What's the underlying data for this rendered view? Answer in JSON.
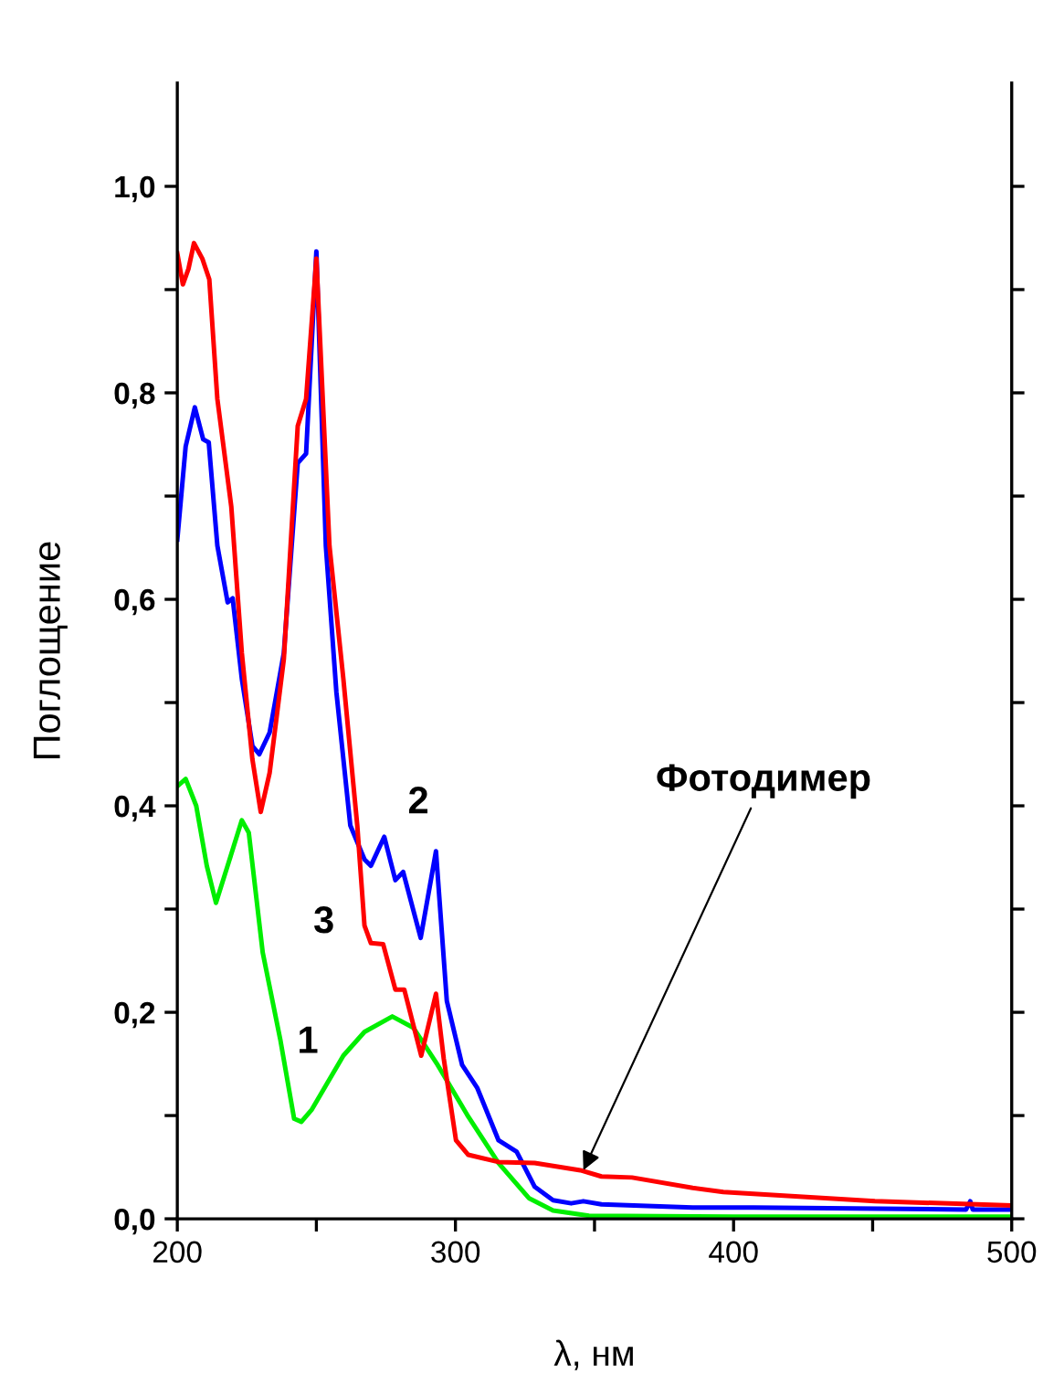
{
  "chart_data": {
    "type": "line",
    "xlabel": "λ, нм",
    "ylabel": "Поглощение",
    "xlim": [
      200,
      500
    ],
    "ylim": [
      0,
      1.1
    ],
    "xticks": [
      200,
      {
        "value": 250,
        "label": null
      },
      300,
      {
        "value": 350,
        "label": null
      },
      400,
      {
        "value": 450,
        "label": null
      },
      500
    ],
    "yticks": [
      {
        "value": 0,
        "label": "0,0"
      },
      {
        "value": 0.1,
        "label": null
      },
      {
        "value": 0.2,
        "label": "0,2"
      },
      {
        "value": 0.3,
        "label": null
      },
      {
        "value": 0.4,
        "label": "0,4"
      },
      {
        "value": 0.5,
        "label": null
      },
      {
        "value": 0.6,
        "label": "0,6"
      },
      {
        "value": 0.7,
        "label": null
      },
      {
        "value": 0.8,
        "label": "0,8"
      },
      {
        "value": 0.9,
        "label": null
      },
      {
        "value": 1.0,
        "label": "1,0"
      }
    ],
    "grid": false,
    "legend": false,
    "marker": "none",
    "line_style": "solid",
    "series": [
      {
        "name": "1",
        "color": "#00ee00",
        "x": [
          200,
          203,
          206.8,
          210.6,
          213.9,
          218.1,
          223.2,
          225.7,
          230.7,
          237,
          242,
          244.6,
          248.4,
          253.4,
          259.7,
          267.3,
          277.3,
          284.9,
          293.6,
          304.6,
          315.5,
          326.4,
          335.1,
          348,
          400,
          500
        ],
        "values": [
          0.419,
          0.426,
          0.4,
          0.342,
          0.306,
          0.342,
          0.386,
          0.374,
          0.258,
          0.174,
          0.097,
          0.094,
          0.106,
          0.129,
          0.158,
          0.181,
          0.196,
          0.185,
          0.149,
          0.099,
          0.054,
          0.02,
          0.008,
          0.003,
          0.002,
          0.002
        ]
      },
      {
        "name": "2",
        "color": "#0000ff",
        "x": [
          200,
          203,
          206.3,
          209.3,
          211.3,
          214.4,
          218.1,
          219.9,
          223.2,
          227,
          229.5,
          233.2,
          238.3,
          243.3,
          246.3,
          250,
          253.4,
          257.2,
          262.2,
          267.3,
          269.6,
          274.4,
          278.4,
          281.2,
          287.5,
          293,
          296.9,
          302.4,
          307.8,
          315.5,
          322,
          328.5,
          335.1,
          341.6,
          346,
          352.5,
          385.3,
          407.2,
          483.6,
          485.1,
          486,
          500
        ],
        "values": [
          0.658,
          0.748,
          0.786,
          0.755,
          0.752,
          0.652,
          0.597,
          0.601,
          0.523,
          0.458,
          0.45,
          0.471,
          0.548,
          0.732,
          0.741,
          0.937,
          0.652,
          0.51,
          0.381,
          0.348,
          0.342,
          0.37,
          0.328,
          0.336,
          0.272,
          0.356,
          0.211,
          0.149,
          0.127,
          0.076,
          0.065,
          0.031,
          0.018,
          0.015,
          0.017,
          0.014,
          0.011,
          0.011,
          0.009,
          0.017,
          0.009,
          0.009
        ]
      },
      {
        "name": "3",
        "color": "#ff0000",
        "x": [
          200,
          202,
          204,
          206,
          209,
          211.5,
          214.4,
          219.4,
          223.2,
          227,
          230,
          233.2,
          238.3,
          243.3,
          246.3,
          250,
          254.7,
          259.7,
          264.7,
          267.3,
          269.6,
          274,
          278.4,
          281.6,
          287.7,
          293,
          295.8,
          300.2,
          304.6,
          315.5,
          328.5,
          344.9,
          352.5,
          363.5,
          385.3,
          396.3,
          450.8,
          500
        ],
        "values": [
          0.935,
          0.905,
          0.92,
          0.945,
          0.93,
          0.91,
          0.794,
          0.69,
          0.548,
          0.445,
          0.394,
          0.432,
          0.542,
          0.768,
          0.794,
          0.93,
          0.652,
          0.523,
          0.381,
          0.284,
          0.267,
          0.266,
          0.222,
          0.222,
          0.158,
          0.218,
          0.155,
          0.076,
          0.062,
          0.055,
          0.054,
          0.047,
          0.041,
          0.04,
          0.03,
          0.026,
          0.017,
          0.013
        ]
      }
    ],
    "annotations": [
      {
        "text": "Фотодимер",
        "x": 346,
        "y": 0.047
      }
    ]
  }
}
